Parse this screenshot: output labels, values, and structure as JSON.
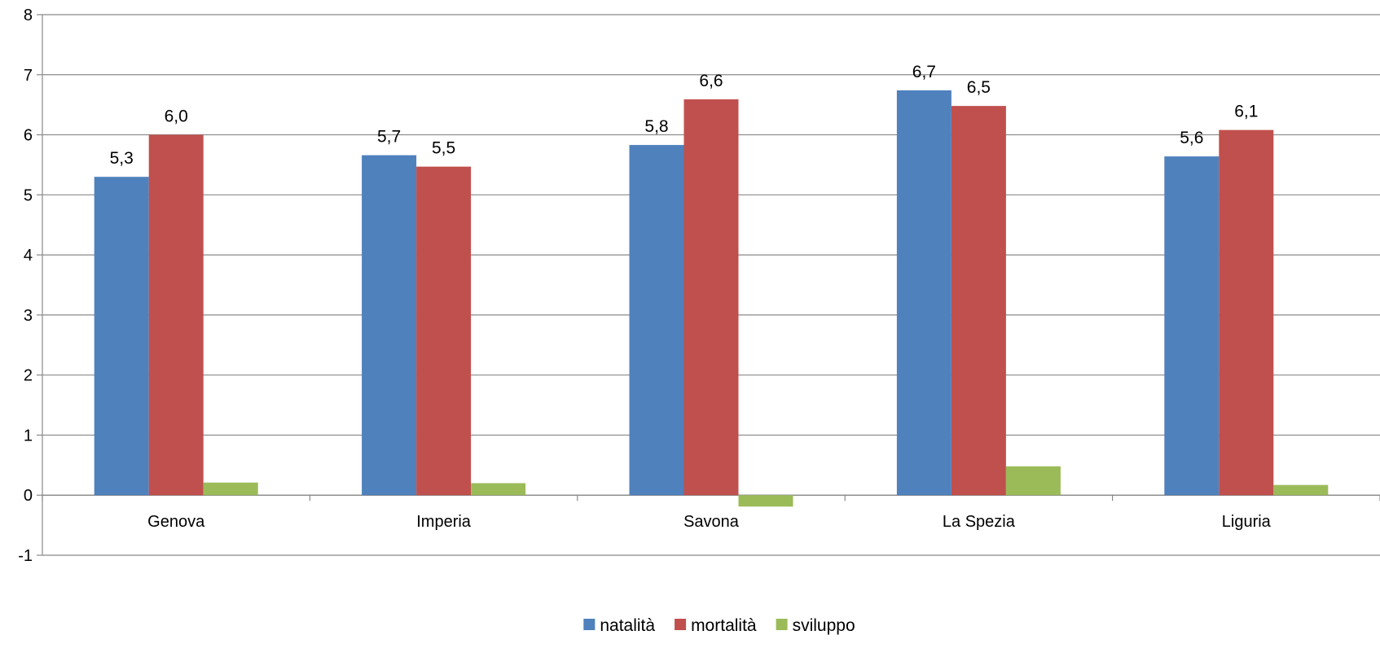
{
  "chart_data": {
    "type": "bar",
    "categories": [
      "Genova",
      "Imperia",
      "Savona",
      "La Spezia",
      "Liguria"
    ],
    "series": [
      {
        "name": "natalità",
        "color": "#4F81BD",
        "values": [
          5.3,
          5.66,
          5.83,
          6.74,
          5.64
        ],
        "labels": [
          "5,3",
          "5,7",
          "5,8",
          "6,7",
          "5,6"
        ]
      },
      {
        "name": "mortalità",
        "color": "#C0504D",
        "values": [
          6.0,
          5.47,
          6.59,
          6.48,
          6.08
        ],
        "labels": [
          "6,0",
          "5,5",
          "6,6",
          "6,5",
          "6,1"
        ]
      },
      {
        "name": "sviluppo",
        "color": "#9BBB59",
        "values": [
          0.21,
          0.2,
          -0.19,
          0.48,
          0.17
        ]
      }
    ],
    "ylim": [
      -1,
      8
    ],
    "yticks": [
      "-1",
      "0",
      "1",
      "2",
      "3",
      "4",
      "5",
      "6",
      "7",
      "8"
    ],
    "grid": true,
    "legend": "bottom",
    "title": "",
    "xlabel": "",
    "ylabel": ""
  }
}
